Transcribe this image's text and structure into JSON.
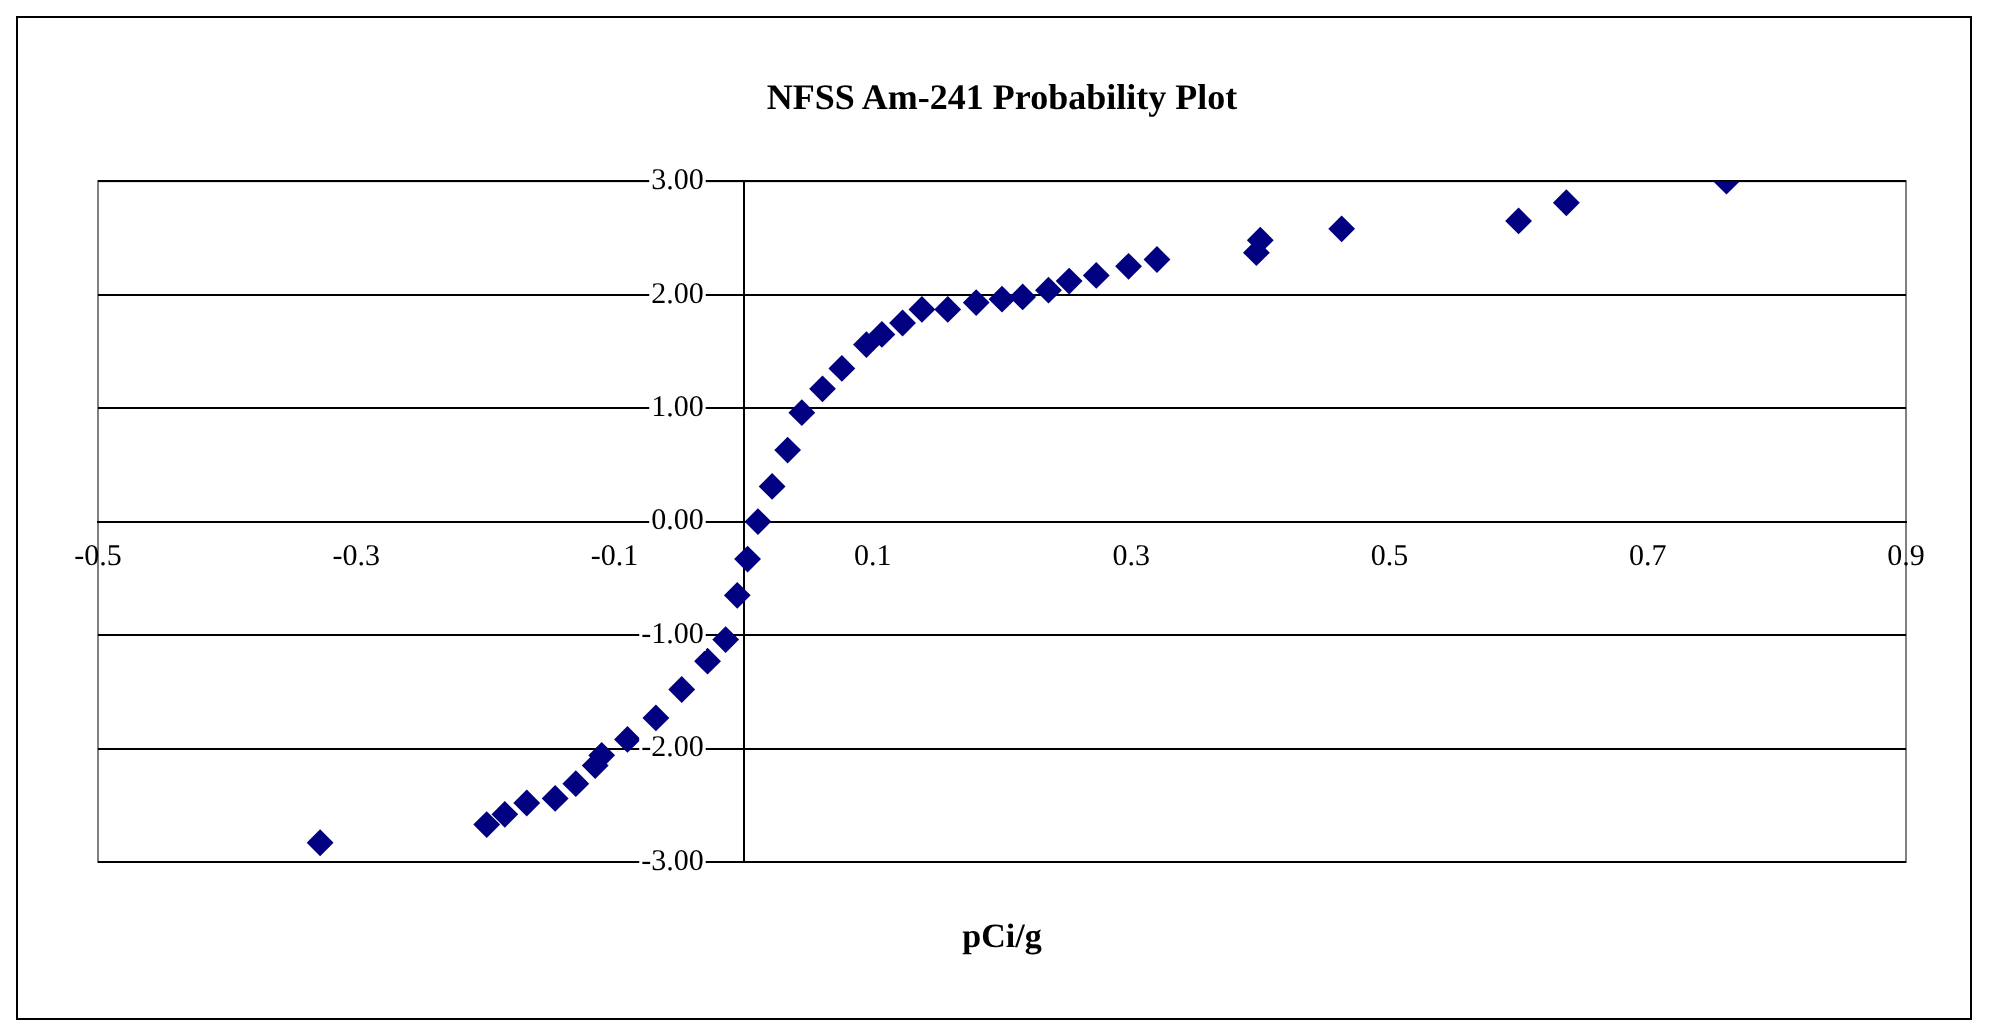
{
  "chart_data": {
    "type": "scatter",
    "title": "NFSS Am-241 Probability Plot",
    "xlabel": "pCi/g",
    "marker": "diamond",
    "grid": "y",
    "legend": false,
    "xlim": [
      -0.5,
      0.9
    ],
    "xticks": [
      -0.5,
      -0.3,
      -0.1,
      0.1,
      0.3,
      0.5,
      0.7,
      0.9
    ],
    "ylim": [
      -3,
      3
    ],
    "yticks": [
      {
        "value": -3,
        "label": "-3.00"
      },
      {
        "value": -2,
        "label": "-2.00"
      },
      {
        "value": -1,
        "label": "-1.00"
      },
      {
        "value": 0,
        "label": "0.00"
      },
      {
        "value": 1,
        "label": "1.00"
      },
      {
        "value": 2,
        "label": "2.00"
      },
      {
        "value": 3,
        "label": "3.00"
      }
    ],
    "series": [
      {
        "color": "#000080",
        "x": [
          -0.328,
          -0.199,
          -0.185,
          -0.168,
          -0.146,
          -0.13,
          -0.115,
          -0.11,
          -0.09,
          -0.068,
          -0.048,
          -0.028,
          -0.014,
          -0.005,
          0.003,
          0.011,
          0.022,
          0.034,
          0.045,
          0.061,
          0.076,
          0.095,
          0.107,
          0.123,
          0.138,
          0.158,
          0.18,
          0.2,
          0.216,
          0.236,
          0.252,
          0.273,
          0.298,
          0.32,
          0.397,
          0.4,
          0.463,
          0.6,
          0.637,
          0.761
        ],
        "values": [
          -2.83,
          -2.67,
          -2.58,
          -2.48,
          -2.44,
          -2.31,
          -2.15,
          -2.06,
          -1.92,
          -1.73,
          -1.48,
          -1.23,
          -1.04,
          -0.65,
          -0.33,
          0.0,
          0.31,
          0.63,
          0.96,
          1.17,
          1.35,
          1.56,
          1.65,
          1.75,
          1.87,
          1.87,
          1.93,
          1.96,
          1.98,
          2.04,
          2.12,
          2.17,
          2.25,
          2.31,
          2.37,
          2.48,
          2.58,
          2.65,
          2.81,
          3.0
        ]
      }
    ]
  }
}
